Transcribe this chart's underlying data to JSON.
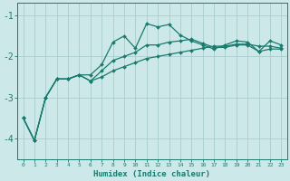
{
  "xlabel": "Humidex (Indice chaleur)",
  "bg_color": "#cce8e8",
  "grid_color": "#aacccc",
  "line_color": "#1a7a6e",
  "x_values": [
    0,
    1,
    2,
    3,
    4,
    5,
    6,
    7,
    8,
    9,
    10,
    11,
    12,
    13,
    14,
    15,
    16,
    17,
    18,
    19,
    20,
    21,
    22,
    23
  ],
  "line1": [
    -3.5,
    -4.05,
    -3.0,
    -2.55,
    -2.55,
    -2.45,
    -2.45,
    -2.2,
    -1.65,
    -1.5,
    -1.8,
    -1.2,
    -1.28,
    -1.22,
    -1.48,
    -1.62,
    -1.72,
    -1.82,
    -1.72,
    -1.62,
    -1.65,
    -1.88,
    -1.62,
    -1.72
  ],
  "line2": [
    -3.5,
    -4.05,
    -3.0,
    -2.55,
    -2.55,
    -2.45,
    -2.6,
    -2.35,
    -2.1,
    -2.0,
    -1.9,
    -1.72,
    -1.72,
    -1.65,
    -1.62,
    -1.58,
    -1.68,
    -1.78,
    -1.78,
    -1.72,
    -1.72,
    -1.88,
    -1.82,
    -1.82
  ],
  "line3": [
    -3.5,
    -4.05,
    -3.0,
    -2.55,
    -2.55,
    -2.45,
    -2.6,
    -2.5,
    -2.35,
    -2.25,
    -2.15,
    -2.05,
    -2.0,
    -1.95,
    -1.9,
    -1.85,
    -1.8,
    -1.75,
    -1.75,
    -1.7,
    -1.7,
    -1.75,
    -1.75,
    -1.8
  ],
  "ylim": [
    -4.5,
    -0.7
  ],
  "xlim": [
    -0.5,
    23.5
  ],
  "yticks": [
    -4,
    -3,
    -2,
    -1
  ],
  "ytick_labels": [
    "-4",
    "-3",
    "-2",
    "-1"
  ],
  "xtick_labels": [
    "0",
    "1",
    "2",
    "3",
    "4",
    "5",
    "6",
    "7",
    "8",
    "9",
    "10",
    "11",
    "12",
    "13",
    "14",
    "15",
    "16",
    "17",
    "18",
    "19",
    "20",
    "21",
    "22",
    "23"
  ],
  "xlabel_fontsize": 6.5,
  "ytick_fontsize": 7,
  "xtick_fontsize": 4.5,
  "linewidth": 0.9,
  "markersize": 2.0
}
